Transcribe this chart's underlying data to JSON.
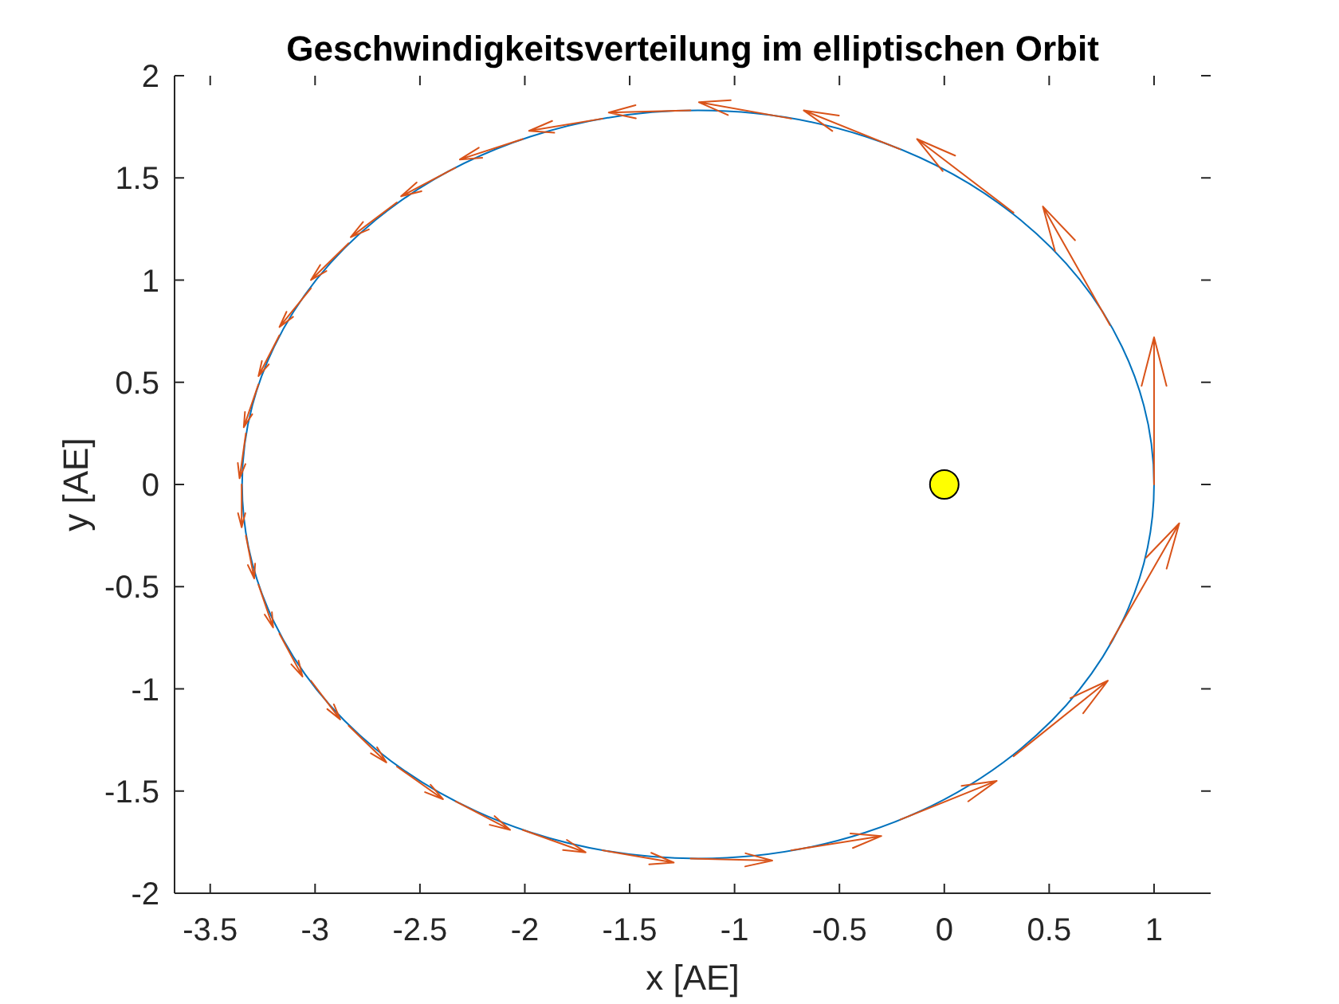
{
  "chart_data": {
    "type": "scatter",
    "title": "Geschwindigkeitsverteilung im elliptischen Orbit",
    "xlabel": "x [AE]",
    "ylabel": "y [AE]",
    "xlim": [
      -3.67,
      1.27
    ],
    "ylim": [
      -2,
      2
    ],
    "xticks": [
      -3.5,
      -3,
      -2.5,
      -2,
      -1.5,
      -1,
      -0.5,
      0,
      0.5,
      1
    ],
    "yticks": [
      -2,
      -1.5,
      -1,
      -0.5,
      0,
      0.5,
      1,
      1.5,
      2
    ],
    "series": [
      {
        "color": "#ffff00",
        "x": [
          0
        ],
        "values": [
          0
        ],
        "marker": "circle"
      }
    ]
  }
}
